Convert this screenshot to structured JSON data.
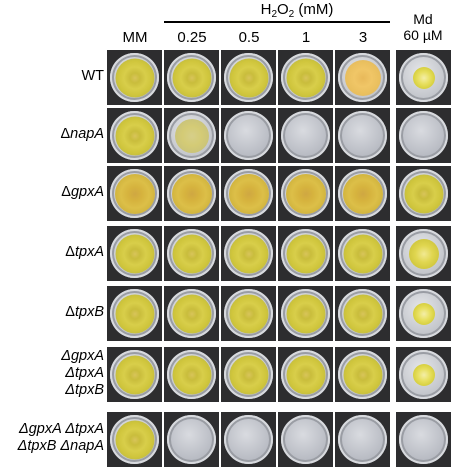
{
  "treatment": {
    "title_main": "H",
    "title_sub": "2",
    "title_rest": "O",
    "title_sub2": "2",
    "title_unit": " (mM)"
  },
  "columns": [
    "MM",
    "0.25",
    "0.5",
    "1",
    "3"
  ],
  "md_header": {
    "line1": "Md",
    "line2": "60 µM"
  },
  "rows": [
    {
      "label_parts": [
        "WT"
      ],
      "italic": [
        false
      ]
    },
    {
      "label_parts": [
        "Δ",
        "napA"
      ],
      "italic": [
        false,
        true
      ]
    },
    {
      "label_parts": [
        "Δ",
        "gpxA"
      ],
      "italic": [
        false,
        true
      ]
    },
    {
      "label_parts": [
        "Δ",
        "tpxA"
      ],
      "italic": [
        false,
        true
      ]
    },
    {
      "label_parts": [
        "Δ",
        "tpxB"
      ],
      "italic": [
        false,
        true
      ]
    },
    {
      "label_lines": [
        "ΔgpxA",
        "ΔtpxA",
        "ΔtpxB"
      ]
    },
    {
      "label_lines": [
        "ΔgpxA ΔtpxA",
        "ΔtpxB ΔnapA"
      ]
    }
  ],
  "growth": [
    [
      "full",
      "full",
      "full",
      "full",
      "orange",
      "small"
    ],
    [
      "full",
      "pale",
      "empty",
      "empty",
      "empty",
      "empty"
    ],
    [
      "dense",
      "dense",
      "dense",
      "dense",
      "dense",
      "full"
    ],
    [
      "full",
      "full",
      "full",
      "full",
      "full",
      "medium"
    ],
    [
      "full",
      "full",
      "full",
      "full",
      "full",
      "small"
    ],
    [
      "full",
      "full",
      "full",
      "full",
      "full",
      "small"
    ],
    [
      "full",
      "empty",
      "empty",
      "empty",
      "empty",
      "empty"
    ]
  ]
}
